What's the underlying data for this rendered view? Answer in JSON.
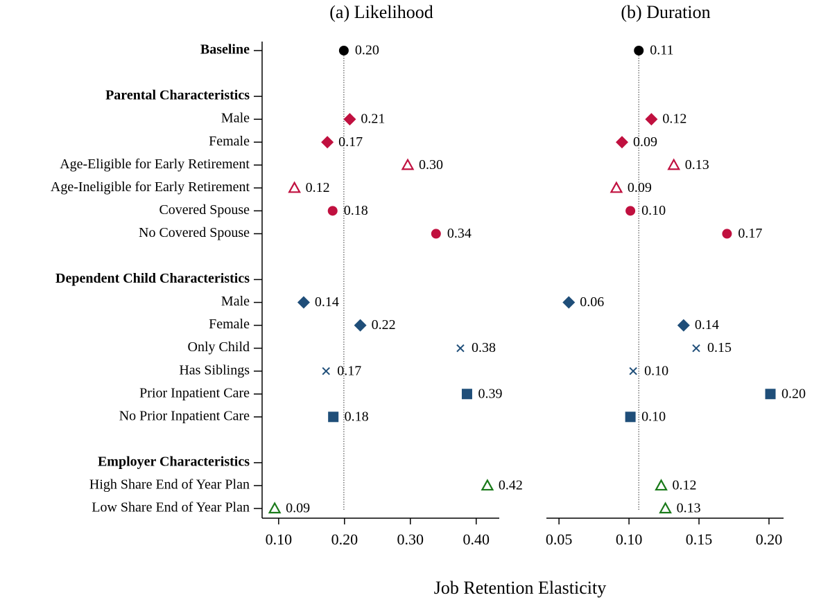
{
  "xlabel": "Job Retention Elasticity",
  "chart_data": [
    {
      "type": "dot",
      "title": "(a) Likelihood",
      "categories": [
        "Baseline",
        "Parental Characteristics",
        "Male",
        "Female",
        "Age-Eligible for Early Retirement",
        "Age-Ineligible for Early Retirement",
        "Covered Spouse",
        "No Covered Spouse",
        "Dependent Child Characteristics",
        "Male",
        "Female",
        "Only Child",
        "Has Siblings",
        "Prior Inpatient Care",
        "No Prior Inpatient Care",
        "Employer Characteristics",
        "High Share End of Year Plan",
        "Low Share End of Year Plan"
      ],
      "bold": [
        true,
        true,
        false,
        false,
        false,
        false,
        false,
        false,
        true,
        false,
        false,
        false,
        false,
        false,
        false,
        true,
        false,
        false
      ],
      "values": [
        0.199,
        null,
        0.208,
        0.174,
        0.296,
        0.124,
        0.182,
        0.339,
        null,
        0.138,
        0.224,
        0.376,
        0.172,
        0.386,
        0.183,
        null,
        0.417,
        0.094
      ],
      "value_labels": [
        "0.20",
        null,
        "0.21",
        "0.17",
        "0.30",
        "0.12",
        "0.18",
        "0.34",
        null,
        "0.14",
        "0.22",
        "0.38",
        "0.17",
        "0.39",
        "0.18",
        null,
        "0.42",
        "0.09"
      ],
      "markers": [
        "circle",
        null,
        "diamond",
        "diamond",
        "triangle",
        "triangle",
        "circle",
        "circle",
        null,
        "diamond",
        "diamond",
        "x",
        "x",
        "square",
        "square",
        null,
        "triangle",
        "triangle"
      ],
      "colors": [
        "#000000",
        null,
        "#c0103f",
        "#c0103f",
        "#c0103f",
        "#c0103f",
        "#c0103f",
        "#c0103f",
        null,
        "#1f4e79",
        "#1f4e79",
        "#1f4e79",
        "#1f4e79",
        "#1f4e79",
        "#1f4e79",
        null,
        "#1a7a1a",
        "#1a7a1a"
      ],
      "xlim": [
        0.077,
        0.435
      ],
      "xticks": [
        {
          "value": 0.1,
          "label": "0.10"
        },
        {
          "value": 0.2,
          "label": "0.20"
        },
        {
          "value": 0.3,
          "label": "0.30"
        },
        {
          "value": 0.4,
          "label": "0.40"
        }
      ]
    },
    {
      "type": "dot",
      "title": "(b) Duration",
      "values": [
        0.107,
        null,
        0.116,
        0.095,
        0.132,
        0.091,
        0.101,
        0.17,
        null,
        0.057,
        0.139,
        0.148,
        0.103,
        0.201,
        0.101,
        null,
        0.123,
        0.126
      ],
      "value_labels": [
        "0.11",
        null,
        "0.12",
        "0.09",
        "0.13",
        "0.09",
        "0.10",
        "0.17",
        null,
        "0.06",
        "0.14",
        "0.15",
        "0.10",
        "0.20",
        "0.10",
        null,
        "0.12",
        "0.13"
      ],
      "markers": [
        "circle",
        null,
        "diamond",
        "diamond",
        "triangle",
        "triangle",
        "circle",
        "circle",
        null,
        "diamond",
        "diamond",
        "x",
        "x",
        "square",
        "square",
        null,
        "triangle",
        "triangle"
      ],
      "colors": [
        "#000000",
        null,
        "#c0103f",
        "#c0103f",
        "#c0103f",
        "#c0103f",
        "#c0103f",
        "#c0103f",
        null,
        "#1f4e79",
        "#1f4e79",
        "#1f4e79",
        "#1f4e79",
        "#1f4e79",
        "#1f4e79",
        null,
        "#1a7a1a",
        "#1a7a1a"
      ],
      "xlim": [
        0.042,
        0.2104
      ],
      "xticks": [
        {
          "value": 0.05,
          "label": "0.05"
        },
        {
          "value": 0.1,
          "label": "0.10"
        },
        {
          "value": 0.15,
          "label": "0.15"
        },
        {
          "value": 0.2,
          "label": "0.20"
        }
      ]
    }
  ]
}
